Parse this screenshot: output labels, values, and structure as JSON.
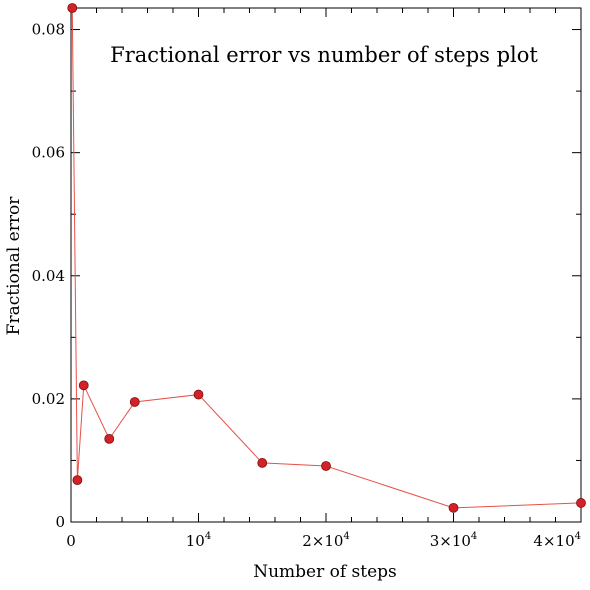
{
  "chart_data": {
    "type": "line",
    "title": "Fractional error vs number of steps plot",
    "xlabel": "Number of steps",
    "ylabel": "Fractional error",
    "xlim": [
      0,
      40000
    ],
    "ylim": [
      0,
      0.0835
    ],
    "grid": false,
    "colors": {
      "line": "#e8504a",
      "marker_fill": "#d42027",
      "marker_edge": "#7a1010"
    },
    "x_ticks": [
      {
        "value": 0,
        "label": "0",
        "exp": ""
      },
      {
        "value": 10000,
        "label": "10",
        "exp": "4"
      },
      {
        "value": 20000,
        "label": "2×10",
        "exp": "4"
      },
      {
        "value": 30000,
        "label": "3×10",
        "exp": "4"
      },
      {
        "value": 40000,
        "label": "4×10",
        "exp": "4"
      }
    ],
    "y_ticks": [
      {
        "value": 0,
        "label": "0"
      },
      {
        "value": 0.02,
        "label": "0.02"
      },
      {
        "value": 0.04,
        "label": "0.04"
      },
      {
        "value": 0.06,
        "label": "0.06"
      },
      {
        "value": 0.08,
        "label": "0.08"
      }
    ],
    "series": [
      {
        "x": [
          100,
          500,
          1000,
          3000,
          5000,
          10000,
          15000,
          20000,
          30000,
          40000
        ],
        "y": [
          0.0835,
          0.0068,
          0.0222,
          0.0135,
          0.0195,
          0.0207,
          0.0096,
          0.0091,
          0.0023,
          0.0031
        ]
      }
    ]
  }
}
